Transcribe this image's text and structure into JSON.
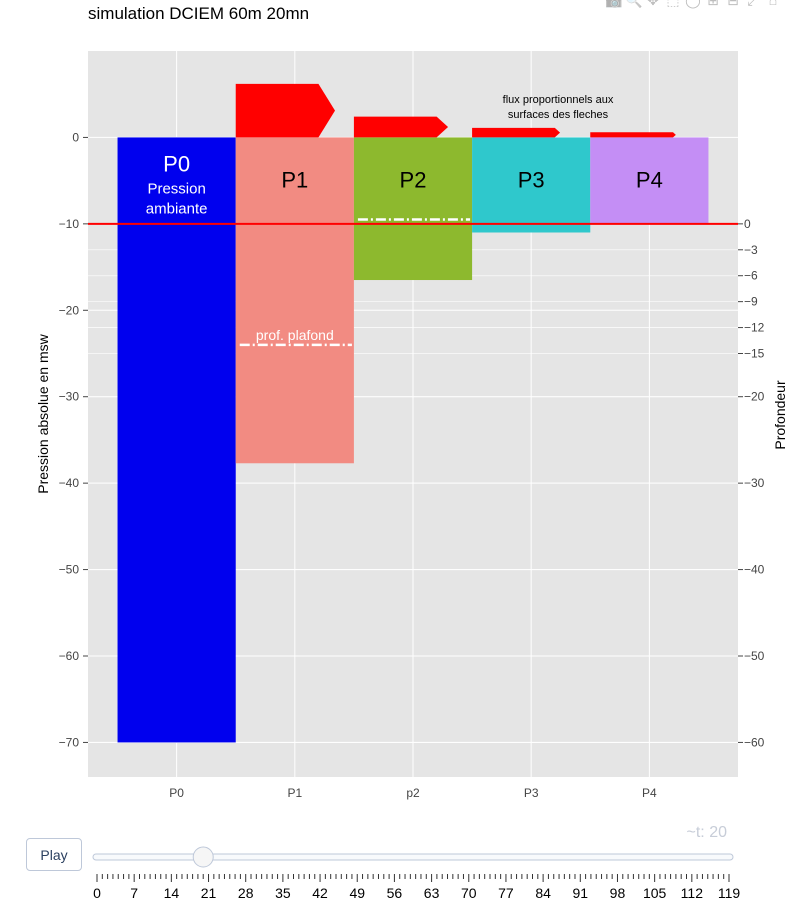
{
  "title": "simulation DCIEM 60m 20mn",
  "modebar_icons": [
    "camera-icon",
    "zoom-icon",
    "pan-icon",
    "box-select-icon",
    "lasso-icon",
    "zoom-in-icon",
    "zoom-out-icon",
    "autoscale-icon",
    "home-icon"
  ],
  "colors": {
    "plot_bg": "#e5e5e5",
    "grid": "#ffffff",
    "P0": "#0000ee",
    "P1": "#f28b82",
    "P2": "#8db92e",
    "P3": "#2fc8cc",
    "P4": "#c48ef5",
    "arrow": "#ff0000",
    "surface_line": "#ff0000",
    "ceiling_line": "#ffffff"
  },
  "chart_data": {
    "type": "bar",
    "title": "simulation DCIEM 60m 20mn",
    "categories": [
      "P0",
      "P1",
      "p2",
      "P3",
      "P4"
    ],
    "bars": [
      {
        "name": "P0",
        "label": "P0",
        "sub1": "Pression",
        "sub2": "ambiante",
        "bottom": -70
      },
      {
        "name": "P1",
        "label": "P1",
        "bottom": -37.7
      },
      {
        "name": "P2",
        "label": "P2",
        "bottom": -16.5
      },
      {
        "name": "P3",
        "label": "P3",
        "bottom": -11
      },
      {
        "name": "P4",
        "label": "P4",
        "bottom": -10
      }
    ],
    "ylabel": "Pression absolue en msw",
    "ylim": [
      -74,
      10
    ],
    "yticks": [
      0,
      -10,
      -20,
      -30,
      -40,
      -50,
      -60,
      -70
    ],
    "y2label": "Profondeur",
    "y2ticks": [
      0,
      -3,
      -6,
      -9,
      -12,
      -15,
      -20,
      -30,
      -40,
      -50,
      -60
    ],
    "surface_level": -10,
    "ceilings": [
      {
        "bar": "P1",
        "y": -24,
        "label": "prof. plafond"
      },
      {
        "bar": "P2",
        "y": -9.5,
        "label": ""
      }
    ],
    "arrows": [
      {
        "from": "P0",
        "to": "P1",
        "height": 6.2
      },
      {
        "from": "P1",
        "to": "P2",
        "height": 2.4
      },
      {
        "from": "P2",
        "to": "P3",
        "height": 1.1
      },
      {
        "from": "P3",
        "to": "P4",
        "height": 0.6
      }
    ],
    "annotation_line1": "flux proportionnels aux",
    "annotation_line2": "surfaces des fleches"
  },
  "slider": {
    "play_label": "Play",
    "current_label": "~t: 20",
    "current_value": 20,
    "min": 0,
    "max": 119,
    "tick_labels": [
      "0",
      "7",
      "14",
      "21",
      "28",
      "35",
      "42",
      "49",
      "56",
      "63",
      "70",
      "77",
      "84",
      "91",
      "98",
      "105",
      "112",
      "119"
    ]
  }
}
